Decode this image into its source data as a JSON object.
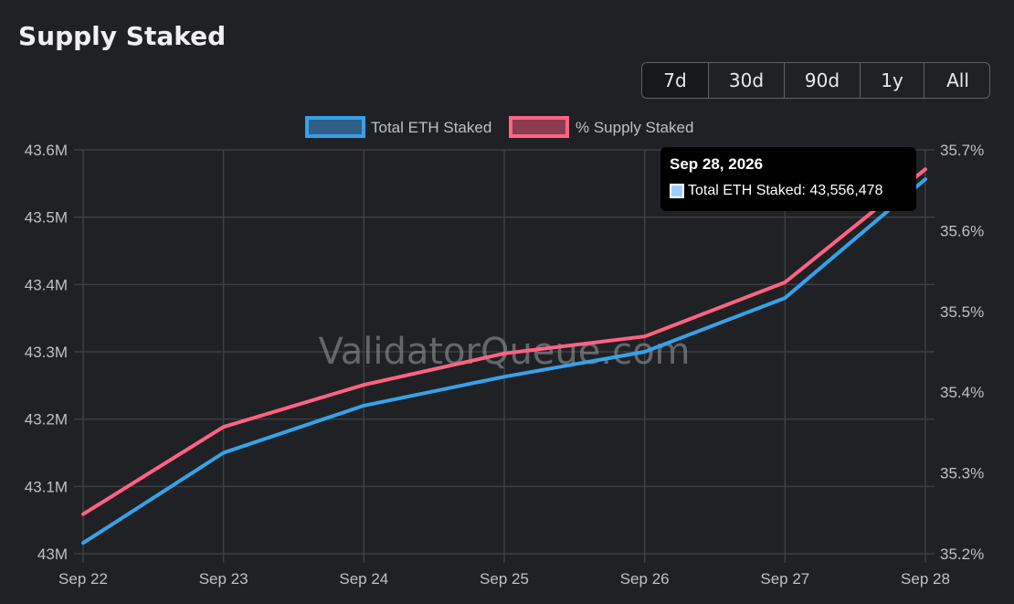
{
  "header": {
    "title": "Supply Staked"
  },
  "range_buttons": [
    {
      "label": "7d",
      "active": true
    },
    {
      "label": "30d",
      "active": false
    },
    {
      "label": "90d",
      "active": false
    },
    {
      "label": "1y",
      "active": false
    },
    {
      "label": "All",
      "active": false
    }
  ],
  "watermark": "ValidatorQueue.com",
  "tooltip": {
    "title": "Sep 28, 2026",
    "series": "Total ETH Staked",
    "value": "43,556,478",
    "text": "Total ETH Staked: 43,556,478"
  },
  "colors": {
    "background": "#202124",
    "grid": "#3c4043",
    "total_eth_staked": "#36a2eb",
    "supply_staked_pct": "#ff6384"
  },
  "chart_data": {
    "type": "line",
    "categories": [
      "Sep 22",
      "Sep 23",
      "Sep 24",
      "Sep 25",
      "Sep 26",
      "Sep 27",
      "Sep 28"
    ],
    "series": [
      {
        "name": "Total ETH Staked",
        "axis": "left",
        "color": "#36a2eb",
        "values": [
          43016000,
          43150000,
          43220000,
          43263000,
          43300000,
          43380000,
          43556478
        ]
      },
      {
        "name": "% Supply Staked",
        "axis": "right",
        "color": "#ff6384",
        "values": [
          35.249,
          35.357,
          35.409,
          35.448,
          35.469,
          35.536,
          35.676
        ]
      }
    ],
    "y_left": {
      "min": 43000000,
      "max": 43600000,
      "ticks": [
        43000000,
        43100000,
        43200000,
        43300000,
        43400000,
        43500000,
        43600000
      ],
      "tick_labels": [
        "43M",
        "43.1M",
        "43.2M",
        "43.3M",
        "43.4M",
        "43.5M",
        "43.6M"
      ]
    },
    "y_right": {
      "min": 35.2,
      "max": 35.7,
      "ticks": [
        35.2,
        35.3,
        35.4,
        35.5,
        35.6,
        35.7
      ],
      "tick_labels": [
        "35.2%",
        "35.3%",
        "35.4%",
        "35.5%",
        "35.6%",
        "35.7%"
      ]
    },
    "legend": [
      "Total ETH Staked",
      "% Supply Staked"
    ],
    "legend_position": "top-center",
    "grid": true
  }
}
